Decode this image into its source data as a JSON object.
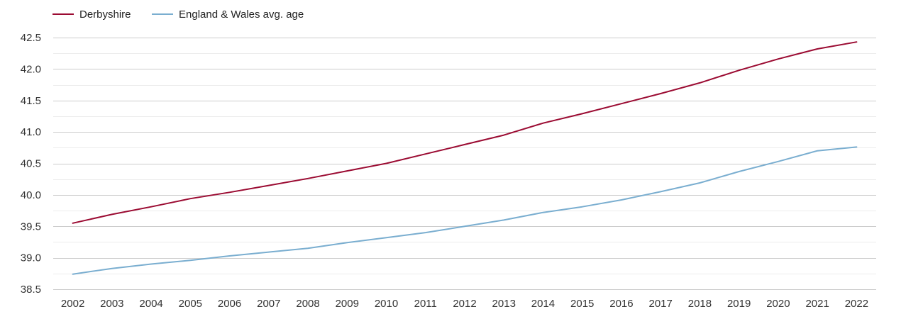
{
  "chart_data": {
    "type": "line",
    "title": "",
    "xlabel": "",
    "ylabel": "",
    "x": [
      2002,
      2003,
      2004,
      2005,
      2006,
      2007,
      2008,
      2009,
      2010,
      2011,
      2012,
      2013,
      2014,
      2015,
      2016,
      2017,
      2018,
      2019,
      2020,
      2021,
      2022
    ],
    "ylim": [
      38.5,
      42.5
    ],
    "yticks": [
      "38.5",
      "39.0",
      "39.5",
      "40.0",
      "40.5",
      "41.0",
      "41.5",
      "42.0",
      "42.5"
    ],
    "grid": true,
    "legend_position": "top-left",
    "series": [
      {
        "name": "Derbyshire",
        "color": "#9b0b32",
        "values": [
          39.55,
          39.69,
          39.81,
          39.94,
          40.04,
          40.15,
          40.26,
          40.38,
          40.5,
          40.65,
          40.8,
          40.95,
          41.14,
          41.29,
          41.45,
          41.61,
          41.78,
          41.98,
          42.16,
          42.32,
          42.43
        ]
      },
      {
        "name": "England & Wales avg. age",
        "color": "#7aaed0",
        "values": [
          38.74,
          38.83,
          38.9,
          38.96,
          39.03,
          39.09,
          39.15,
          39.24,
          39.32,
          39.4,
          39.5,
          39.6,
          39.72,
          39.81,
          39.92,
          40.05,
          40.19,
          40.37,
          40.53,
          40.7,
          40.76
        ]
      }
    ]
  }
}
